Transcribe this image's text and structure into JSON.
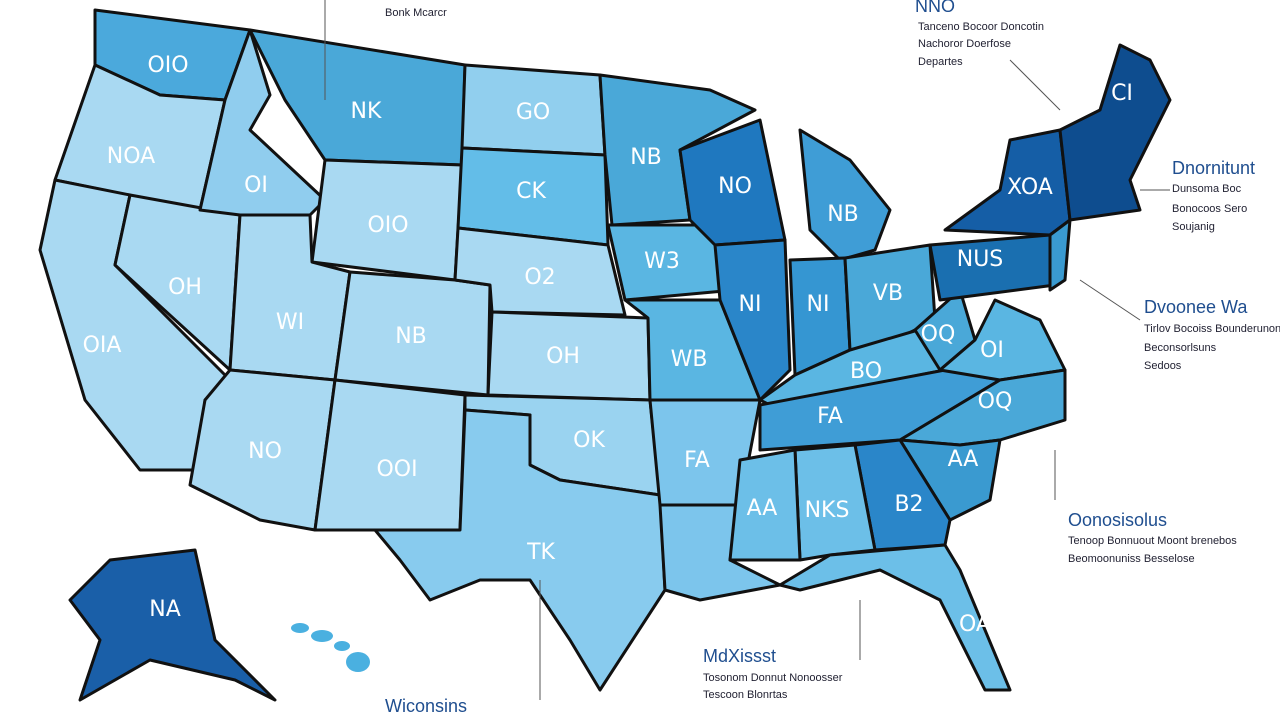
{
  "map": {
    "labels": [
      "OIO",
      "NK",
      "GO",
      "NB",
      "NO",
      "NB",
      "CI",
      "XOA",
      "NOA",
      "OI",
      "OIO",
      "CK",
      "O2",
      "W3",
      "NUS",
      "OH",
      "WI",
      "NB",
      "OH",
      "WB",
      "NI",
      "NI",
      "VB",
      "OQ",
      "OI",
      "BO",
      "OIA",
      "NO",
      "OOI",
      "OK",
      "FA",
      "FA",
      "OQ",
      "AA",
      "B2",
      "NKS",
      "AA",
      "TK",
      "OA",
      "NA"
    ]
  },
  "annotations": [
    {
      "title": "Bonk Mcarcr"
    },
    {
      "title": "NNO",
      "lines": [
        "Tanceno Bocoor Doncotin",
        "Nachoror Doerfose",
        "Departes"
      ]
    },
    {
      "title": "Dnornitunt",
      "lines": [
        "Dunsoma Boc",
        "Bonocoos Sero",
        "Soujanig"
      ]
    },
    {
      "title": "Dvoonee Wa",
      "lines": [
        "Tirlov Bocoiss Bounderunon",
        "Beconsorlsuns",
        "Sedoos"
      ]
    },
    {
      "title": "Oonosisolus",
      "lines": [
        "Tenoop Bonnuout Moont brenebos",
        "Beomoonuniss Besselose"
      ]
    },
    {
      "title": "MdXissst",
      "lines": [
        "Tosonom Donnut Nonoosser",
        "Tescoon Blonrtas"
      ]
    },
    {
      "title": "Wiconsins"
    }
  ]
}
